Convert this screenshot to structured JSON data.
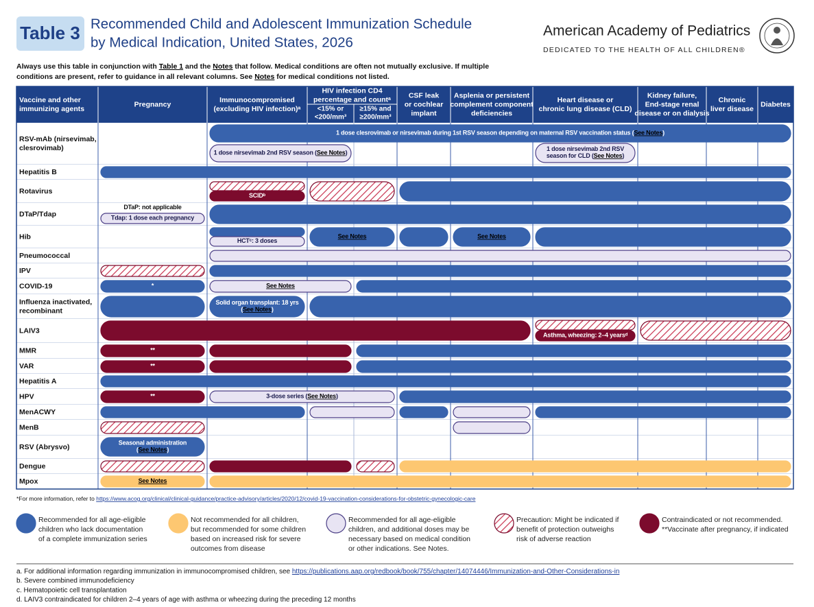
{
  "header": {
    "badge": "Table 3",
    "title_line1": "Recommended Child and Adolescent Immunization Schedule",
    "title_line2": "by Medical Indication, United States, 2026",
    "org": "American Academy of Pediatrics",
    "tagline": "DEDICATED TO THE HEALTH OF ALL CHILDREN®"
  },
  "intro": [
    [
      "Always use this table in conjunction with ",
      {
        "text": "Table 1",
        "underline": true
      },
      " and the ",
      {
        "text": "Notes",
        "underline": true
      },
      " that follow. Medical conditions are often not mutually exclusive. If multiple"
    ],
    [
      "conditions are present, refer to guidance in all relevant columns. See ",
      {
        "text": "Notes",
        "underline": true
      },
      " for medical conditions not listed."
    ]
  ],
  "columns": [
    [
      "Vaccine and other",
      "immunizing agents"
    ],
    [
      "Pregnancy"
    ],
    [
      "Immunocompromised",
      "(excluding HIV infection)ᵃ"
    ],
    [
      "HIV infection CD4",
      "percentage and countᵃ"
    ],
    [
      "CSF leak",
      "or cochlear",
      "implant"
    ],
    [
      "Asplenia or persistent",
      "complement component",
      "deficiencies"
    ],
    [
      "Heart disease or",
      "chronic lung disease (CLD)"
    ],
    [
      "Kidney failure,",
      "End-stage renal",
      "disease or on dialysis"
    ],
    [
      "Chronic",
      "liver disease"
    ],
    [
      "Diabetes"
    ]
  ],
  "hiv_sub": [
    [
      "<15% or",
      "<200/mm³"
    ],
    [
      "≥15% and",
      "≥200/mm³"
    ]
  ],
  "rows": [
    {
      "label": [
        "RSV-mAb (nirsevimab,",
        "clesrovimab)"
      ],
      "texts": [
        [
          [
            "1 dose clesrovimab or nirsevimab during 1st RSV season depending on maternal RSV vaccination status (",
            {
              "text": "See Notes",
              "underline": true
            },
            ")"
          ]
        ],
        [
          [
            "1 dose nirsevimab 2nd RSV season (",
            {
              "text": "See Notes",
              "underline": true
            },
            ")"
          ]
        ],
        [
          [
            "1 dose nirsevimab 2nd RSV"
          ],
          [
            "season for CLD (",
            {
              "text": "See Notes",
              "underline": true
            },
            ")"
          ]
        ]
      ]
    },
    {
      "label": [
        "Hepatitis B"
      ],
      "texts": []
    },
    {
      "label": [
        "Rotavirus"
      ],
      "texts": [
        [
          [
            "SCIDᵇ"
          ]
        ]
      ]
    },
    {
      "label": [
        "DTaP/Tdap"
      ],
      "texts": [
        [
          [
            "DTaP: not applicable"
          ]
        ],
        [
          [
            "Tdap: 1 dose each pregnancy"
          ]
        ]
      ]
    },
    {
      "label": [
        "Hib"
      ],
      "texts": [
        [
          [
            "HCTᶜ: 3 doses"
          ]
        ],
        [
          [
            {
              "text": "See Notes",
              "underline": true
            }
          ]
        ],
        [
          [
            {
              "text": "See Notes",
              "underline": true
            }
          ]
        ]
      ]
    },
    {
      "label": [
        "Pneumococcal"
      ],
      "texts": []
    },
    {
      "label": [
        "IPV"
      ],
      "texts": []
    },
    {
      "label": [
        "COVID-19"
      ],
      "texts": [
        [
          [
            "*"
          ]
        ],
        [
          [
            {
              "text": "See Notes",
              "underline": true
            }
          ]
        ]
      ]
    },
    {
      "label": [
        "Influenza inactivated,",
        "recombinant"
      ],
      "texts": [
        [
          [
            "Solid organ transplant: 18 yrs"
          ],
          [
            "(",
            {
              "text": "See Notes",
              "underline": true
            },
            ")"
          ]
        ]
      ]
    },
    {
      "label": [
        "LAIV3"
      ],
      "texts": [
        [
          [
            "Asthma, wheezing: 2–4 yearsᵈ"
          ]
        ]
      ]
    },
    {
      "label": [
        "MMR"
      ],
      "texts": [
        [
          [
            "**"
          ]
        ]
      ]
    },
    {
      "label": [
        "VAR"
      ],
      "texts": [
        [
          [
            "**"
          ]
        ]
      ]
    },
    {
      "label": [
        "Hepatitis A"
      ],
      "texts": []
    },
    {
      "label": [
        "HPV"
      ],
      "texts": [
        [
          [
            "**"
          ]
        ],
        [
          [
            "3-dose series (",
            {
              "text": "See Notes",
              "underline": true
            },
            ")"
          ]
        ]
      ]
    },
    {
      "label": [
        "MenACWY"
      ],
      "texts": []
    },
    {
      "label": [
        "MenB"
      ],
      "texts": []
    },
    {
      "label": [
        "RSV (Abrysvo)"
      ],
      "texts": [
        [
          [
            "Seasonal administration"
          ],
          [
            "(",
            {
              "text": "See Notes",
              "underline": true
            },
            ")"
          ]
        ]
      ]
    },
    {
      "label": [
        "Dengue"
      ],
      "texts": []
    },
    {
      "label": [
        "Mpox"
      ],
      "texts": [
        [
          [
            {
              "text": "See Notes",
              "underline": true
            }
          ]
        ]
      ]
    }
  ],
  "footnote": [
    "*For more information, refer to ",
    {
      "text": "https://www.acog.org/clinical/clinical-guidance/practice-advisory/articles/2020/12/covid-19-vaccination-considerations-for-obstetric-gynecologic-care",
      "underline": true
    }
  ],
  "legend": [
    [
      "Recommended for all age-eligible",
      "children who lack documentation",
      "of a complete immunization series"
    ],
    [
      "Not recommended for all children,",
      "but recommended for some children",
      "based on increased risk for severe",
      "outcomes from disease"
    ],
    [
      "Recommended for all age-eligible",
      "children, and additional doses may be",
      "necessary based on medical condition",
      "or other indications. See Notes."
    ],
    [
      "Precaution: Might be indicated if",
      "benefit of protection outweighs",
      "risk of adverse reaction"
    ],
    [
      "Contraindicated or not recommended.",
      "**Vaccinate after pregnancy, if indicated"
    ]
  ],
  "notes": [
    [
      "a. For additional information regarding immunization in immunocompromised children, see ",
      {
        "text": "https://publications.aap.org/redbook/book/755/chapter/14074446/Immunization-and-Other-Considerations-in",
        "underline": true
      }
    ],
    [
      "b. Severe combined immunodeficiency"
    ],
    [
      "c. Hematopoietic cell transplantation"
    ],
    [
      "d. LAIV3 contraindicated for children 2–4 years of age with asthma or wheezing during the preceding 12 months"
    ]
  ]
}
